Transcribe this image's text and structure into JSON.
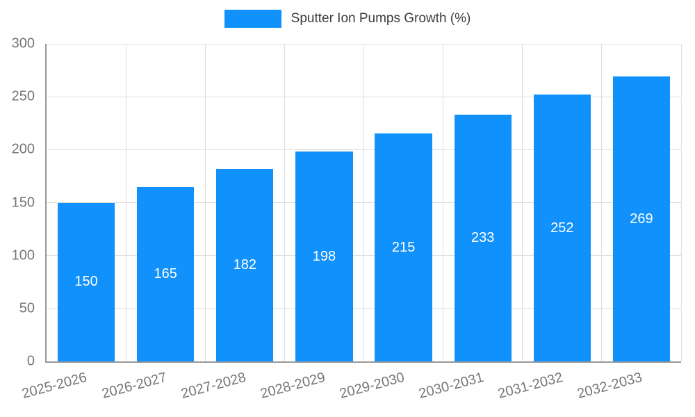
{
  "colors": {
    "bar": "#1191fb",
    "grid": "#dddddd",
    "axis": "#999999",
    "tick_text": "#757575",
    "value_label": "#ffffff",
    "legend_text": "#3c3c3c"
  },
  "chart_data": {
    "type": "bar",
    "title": "Sputter Ion Pumps Growth (%)",
    "xlabel": "",
    "ylabel": "",
    "categories": [
      "2025-2026",
      "2026-2027",
      "2027-2028",
      "2028-2029",
      "2029-2030",
      "2030-2031",
      "2031-2032",
      "2032-2033"
    ],
    "values": [
      150,
      165,
      182,
      198,
      215,
      233,
      252,
      269
    ],
    "ylim": [
      0,
      300
    ],
    "yticks": [
      0,
      50,
      100,
      150,
      200,
      250,
      300
    ],
    "grid": true,
    "legend_position": "top"
  }
}
